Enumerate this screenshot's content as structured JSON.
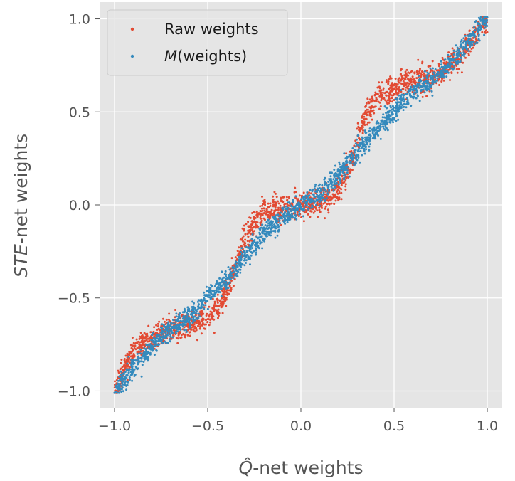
{
  "chart_data": {
    "type": "scatter",
    "title": "",
    "xlabel": "Q̂-net weights",
    "xlabel_parts": {
      "symbol": "Q̂",
      "rest": "-net weights"
    },
    "ylabel": "STE-net weights",
    "ylabel_parts": {
      "symbol": "STE",
      "rest": "-net weights"
    },
    "xlim": [
      -1.08,
      1.08
    ],
    "ylim": [
      -1.09,
      1.09
    ],
    "xticks": [
      -1.0,
      -0.5,
      0.0,
      0.5,
      1.0
    ],
    "yticks": [
      -1.0,
      -0.5,
      0.0,
      0.5,
      1.0
    ],
    "xtick_labels": [
      "−1.0",
      "−0.5",
      "0.0",
      "0.5",
      "1.0"
    ],
    "ytick_labels": [
      "−1.0",
      "−0.5",
      "0.0",
      "0.5",
      "1.0"
    ],
    "grid": true,
    "legend_position": "top-left",
    "series": [
      {
        "name": "Raw weights",
        "label_text": "Raw weights",
        "color": "#E24A33",
        "trend": {
          "x": [
            -1.0,
            -0.95,
            -0.9,
            -0.85,
            -0.8,
            -0.75,
            -0.7,
            -0.65,
            -0.6,
            -0.55,
            -0.5,
            -0.45,
            -0.4,
            -0.35,
            -0.3,
            -0.25,
            -0.2,
            -0.15,
            -0.1,
            -0.05,
            0.0,
            0.05,
            0.1,
            0.15,
            0.2,
            0.25,
            0.3,
            0.35,
            0.4,
            0.45,
            0.5,
            0.55,
            0.6,
            0.65,
            0.7,
            0.75,
            0.8,
            0.85,
            0.9,
            0.95,
            1.0
          ],
          "y": [
            -1.0,
            -0.87,
            -0.79,
            -0.75,
            -0.72,
            -0.69,
            -0.67,
            -0.66,
            -0.65,
            -0.63,
            -0.6,
            -0.56,
            -0.47,
            -0.33,
            -0.18,
            -0.09,
            -0.04,
            -0.02,
            -0.01,
            0.0,
            0.0,
            0.0,
            0.02,
            0.04,
            0.09,
            0.18,
            0.33,
            0.47,
            0.56,
            0.6,
            0.63,
            0.65,
            0.66,
            0.67,
            0.69,
            0.72,
            0.75,
            0.79,
            0.87,
            0.94,
            1.0
          ]
        },
        "spread": 0.035
      },
      {
        "name": "M(weights)",
        "label_text": "(weights)",
        "label_symbol": "M",
        "color": "#348ABD",
        "trend": {
          "x": [
            -1.0,
            -0.9,
            -0.8,
            -0.7,
            -0.6,
            -0.5,
            -0.4,
            -0.3,
            -0.2,
            -0.1,
            0.0,
            0.1,
            0.2,
            0.3,
            0.4,
            0.5,
            0.6,
            0.7,
            0.8,
            0.9,
            1.0
          ],
          "y": [
            -1.0,
            -0.88,
            -0.76,
            -0.67,
            -0.6,
            -0.5,
            -0.4,
            -0.28,
            -0.16,
            -0.06,
            0.0,
            0.06,
            0.16,
            0.28,
            0.4,
            0.5,
            0.6,
            0.67,
            0.76,
            0.88,
            1.0
          ]
        },
        "spread": 0.028
      }
    ]
  }
}
